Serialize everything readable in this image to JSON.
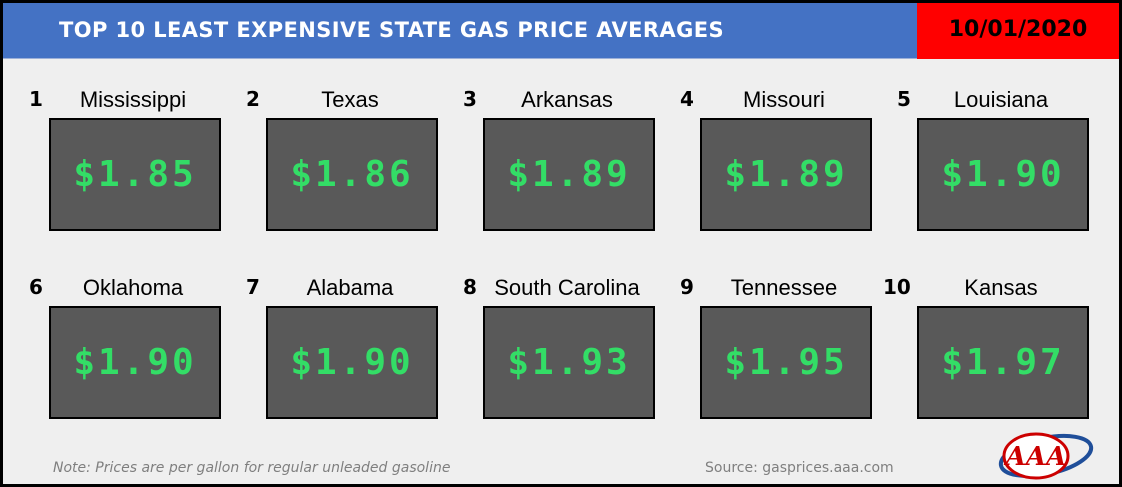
{
  "header": {
    "title": "TOP 10 LEAST EXPENSIVE STATE GAS PRICE AVERAGES",
    "date": "10/01/2020"
  },
  "chart_data": {
    "type": "table",
    "title": "TOP 10 LEAST EXPENSIVE STATE GAS PRICE AVERAGES",
    "columns": [
      "rank",
      "state",
      "price"
    ],
    "rows": [
      {
        "rank": "1",
        "state": "Mississippi",
        "price": "$1.85",
        "value": 1.85
      },
      {
        "rank": "2",
        "state": "Texas",
        "price": "$1.86",
        "value": 1.86
      },
      {
        "rank": "3",
        "state": "Arkansas",
        "price": "$1.89",
        "value": 1.89
      },
      {
        "rank": "4",
        "state": "Missouri",
        "price": "$1.89",
        "value": 1.89
      },
      {
        "rank": "5",
        "state": "Louisiana",
        "price": "$1.90",
        "value": 1.9
      },
      {
        "rank": "6",
        "state": "Oklahoma",
        "price": "$1.90",
        "value": 1.9
      },
      {
        "rank": "7",
        "state": "Alabama",
        "price": "$1.90",
        "value": 1.9
      },
      {
        "rank": "8",
        "state": "South Carolina",
        "price": "$1.93",
        "value": 1.93
      },
      {
        "rank": "9",
        "state": "Tennessee",
        "price": "$1.95",
        "value": 1.95
      },
      {
        "rank": "10",
        "state": "Kansas",
        "price": "$1.97",
        "value": 1.97
      }
    ]
  },
  "footer": {
    "note": "Note: Prices are per gallon for regular unleaded gasoline",
    "source": "Source: gasprices.aaa.com",
    "logo_text": "AAA"
  },
  "colors": {
    "header_blue": "#4472c4",
    "date_red": "#ff0000",
    "price_box": "#595959",
    "price_text": "#33dd66",
    "background": "#efefef"
  }
}
